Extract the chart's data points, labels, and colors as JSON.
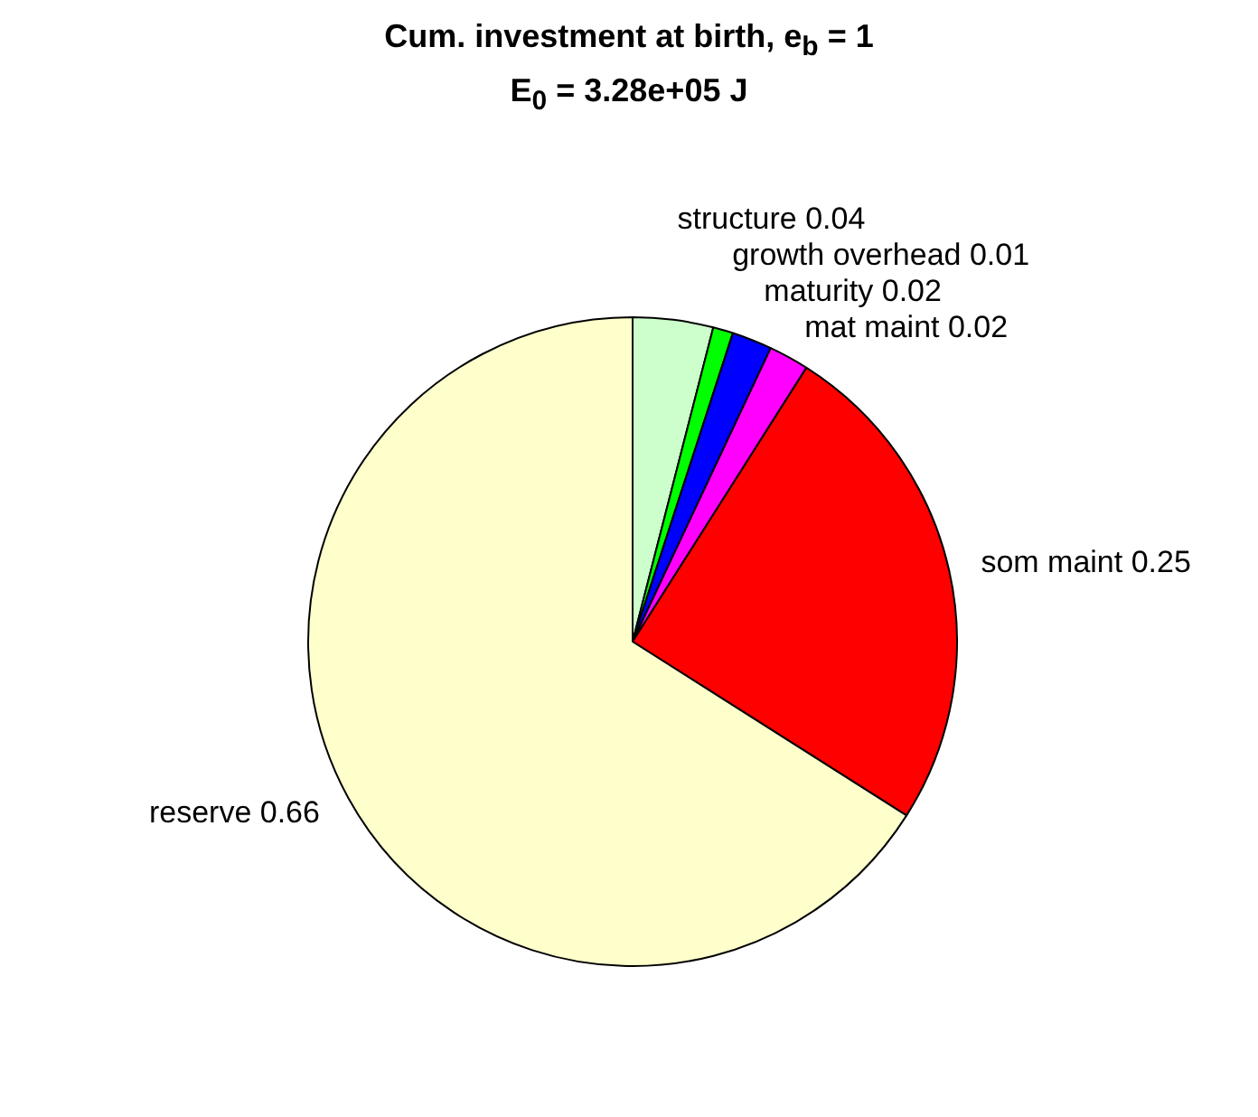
{
  "chart_data": {
    "type": "pie",
    "title": "Cum. investment at birth, e$_{b}$ = 1",
    "subtitle": "E$_{0}$ = 3.28e+05 J",
    "categories": [
      "structure 0.04",
      "growth overhead 0.01",
      "maturity 0.02",
      "mat maint 0.02",
      "som maint 0.25",
      "reserve 0.66"
    ],
    "values": [
      0.04,
      0.01,
      0.02,
      0.02,
      0.25,
      0.66
    ],
    "colors": [
      "#ccffcc",
      "#00ff00",
      "#0000ff",
      "#ff00ff",
      "#ff0000",
      "#ffffcc"
    ],
    "legend": false
  }
}
